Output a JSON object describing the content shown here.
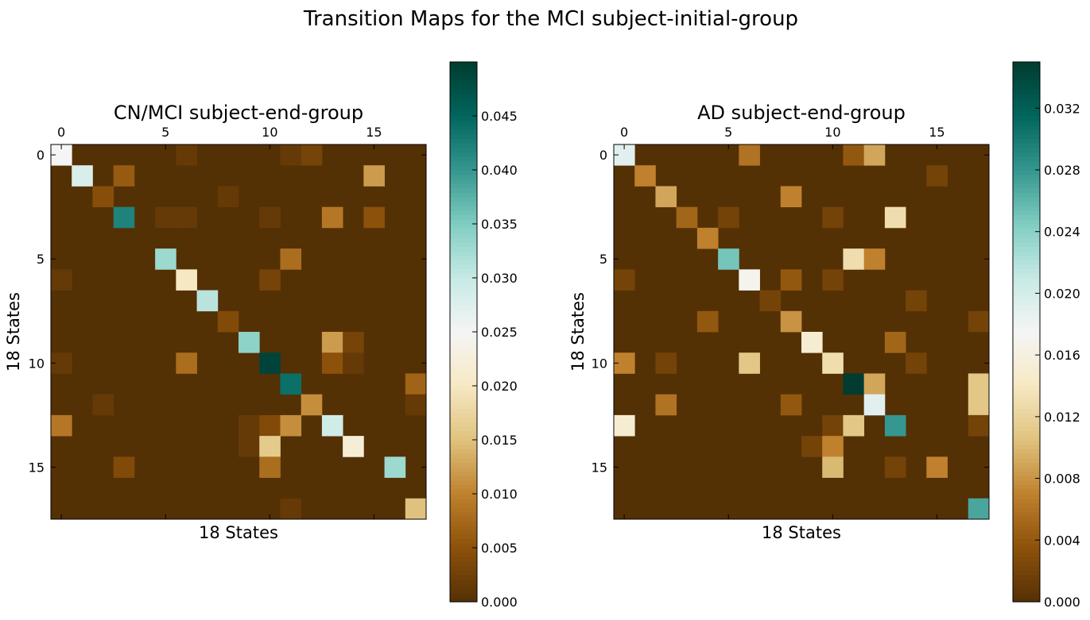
{
  "figure": {
    "suptitle": "Transition Maps for the MCI subject-initial-group"
  },
  "colormap": {
    "name": "BrBG",
    "stops": [
      "#543005",
      "#8c510a",
      "#bf812d",
      "#dfc27d",
      "#f6e8c3",
      "#f5f5f5",
      "#c7eae5",
      "#80cdc1",
      "#35978f",
      "#01665e",
      "#003c30"
    ]
  },
  "chart_data": [
    {
      "type": "heatmap",
      "title": "CN/MCI subject-end-group",
      "xlabel": "18 States",
      "ylabel": "18 States",
      "n": 18,
      "x_ticks": [
        0,
        5,
        10,
        15
      ],
      "y_ticks": [
        0,
        5,
        10,
        15
      ],
      "vmin": 0,
      "vmax": 0.05,
      "colorbar_ticks": [
        0.0,
        0.005,
        0.01,
        0.015,
        0.02,
        0.025,
        0.03,
        0.035,
        0.04,
        0.045
      ],
      "colorbar_tick_labels": [
        "0.000",
        "0.005",
        "0.010",
        "0.015",
        "0.020",
        "0.025",
        "0.030",
        "0.035",
        "0.040",
        "0.045"
      ],
      "cells": [
        [
          0,
          0,
          0.025
        ],
        [
          0,
          6,
          0.0015
        ],
        [
          0,
          11,
          0.0015
        ],
        [
          0,
          12,
          0.003
        ],
        [
          1,
          1,
          0.028
        ],
        [
          1,
          3,
          0.006
        ],
        [
          1,
          15,
          0.012
        ],
        [
          2,
          2,
          0.0045
        ],
        [
          2,
          8,
          0.0015
        ],
        [
          3,
          3,
          0.042
        ],
        [
          3,
          5,
          0.0015
        ],
        [
          3,
          6,
          0.0015
        ],
        [
          3,
          10,
          0.0015
        ],
        [
          3,
          13,
          0.009
        ],
        [
          3,
          15,
          0.005
        ],
        [
          5,
          5,
          0.033
        ],
        [
          5,
          11,
          0.008
        ],
        [
          6,
          0,
          0.0015
        ],
        [
          6,
          6,
          0.02
        ],
        [
          6,
          10,
          0.003
        ],
        [
          7,
          7,
          0.031
        ],
        [
          8,
          8,
          0.004
        ],
        [
          9,
          9,
          0.034
        ],
        [
          9,
          13,
          0.012
        ],
        [
          9,
          14,
          0.003
        ],
        [
          10,
          0,
          0.0015
        ],
        [
          10,
          6,
          0.008
        ],
        [
          10,
          10,
          0.049
        ],
        [
          10,
          13,
          0.005
        ],
        [
          10,
          14,
          0.0015
        ],
        [
          11,
          11,
          0.044
        ],
        [
          11,
          17,
          0.007
        ],
        [
          12,
          2,
          0.0015
        ],
        [
          12,
          12,
          0.011
        ],
        [
          12,
          17,
          0.0015
        ],
        [
          13,
          0,
          0.009
        ],
        [
          13,
          9,
          0.0015
        ],
        [
          13,
          10,
          0.004
        ],
        [
          13,
          11,
          0.011
        ],
        [
          13,
          13,
          0.029
        ],
        [
          14,
          9,
          0.0015
        ],
        [
          14,
          10,
          0.016
        ],
        [
          14,
          14,
          0.022
        ],
        [
          15,
          3,
          0.004
        ],
        [
          15,
          10,
          0.008
        ],
        [
          15,
          16,
          0.033
        ],
        [
          17,
          11,
          0.0015
        ],
        [
          17,
          17,
          0.015
        ]
      ]
    },
    {
      "type": "heatmap",
      "title": "AD subject-end-group",
      "xlabel": "18 States",
      "ylabel": "18 States",
      "n": 18,
      "x_ticks": [
        0,
        5,
        10,
        15
      ],
      "y_ticks": [
        0,
        5,
        10,
        15
      ],
      "vmin": 0,
      "vmax": 0.035,
      "colorbar_ticks": [
        0.0,
        0.004,
        0.008,
        0.012,
        0.016,
        0.02,
        0.024,
        0.028,
        0.032
      ],
      "colorbar_tick_labels": [
        "0.000",
        "0.004",
        "0.008",
        "0.012",
        "0.016",
        "0.020",
        "0.024",
        "0.028",
        "0.032"
      ],
      "cells": [
        [
          0,
          0,
          0.019
        ],
        [
          0,
          6,
          0.006
        ],
        [
          0,
          11,
          0.004
        ],
        [
          0,
          12,
          0.009
        ],
        [
          1,
          1,
          0.007
        ],
        [
          1,
          15,
          0.002
        ],
        [
          2,
          2,
          0.009
        ],
        [
          2,
          8,
          0.007
        ],
        [
          3,
          3,
          0.005
        ],
        [
          3,
          5,
          0.002
        ],
        [
          3,
          10,
          0.002
        ],
        [
          3,
          13,
          0.013
        ],
        [
          4,
          4,
          0.007
        ],
        [
          5,
          5,
          0.025
        ],
        [
          5,
          11,
          0.013
        ],
        [
          5,
          12,
          0.007
        ],
        [
          6,
          0,
          0.002
        ],
        [
          6,
          6,
          0.017
        ],
        [
          6,
          8,
          0.004
        ],
        [
          6,
          10,
          0.002
        ],
        [
          7,
          7,
          0.002
        ],
        [
          7,
          14,
          0.002
        ],
        [
          8,
          4,
          0.004
        ],
        [
          8,
          8,
          0.008
        ],
        [
          8,
          17,
          0.002
        ],
        [
          9,
          9,
          0.015
        ],
        [
          9,
          13,
          0.005
        ],
        [
          10,
          0,
          0.007
        ],
        [
          10,
          2,
          0.002
        ],
        [
          10,
          6,
          0.011
        ],
        [
          10,
          10,
          0.013
        ],
        [
          10,
          14,
          0.002
        ],
        [
          11,
          11,
          0.035
        ],
        [
          11,
          12,
          0.009
        ],
        [
          11,
          17,
          0.011
        ],
        [
          12,
          2,
          0.006
        ],
        [
          12,
          8,
          0.004
        ],
        [
          12,
          12,
          0.019
        ],
        [
          12,
          17,
          0.011
        ],
        [
          13,
          0,
          0.015
        ],
        [
          13,
          10,
          0.002
        ],
        [
          13,
          11,
          0.011
        ],
        [
          13,
          13,
          0.028
        ],
        [
          13,
          17,
          0.002
        ],
        [
          14,
          9,
          0.002
        ],
        [
          14,
          10,
          0.007
        ],
        [
          15,
          10,
          0.01
        ],
        [
          15,
          13,
          0.002
        ],
        [
          15,
          15,
          0.007
        ],
        [
          17,
          17,
          0.027
        ]
      ]
    }
  ]
}
